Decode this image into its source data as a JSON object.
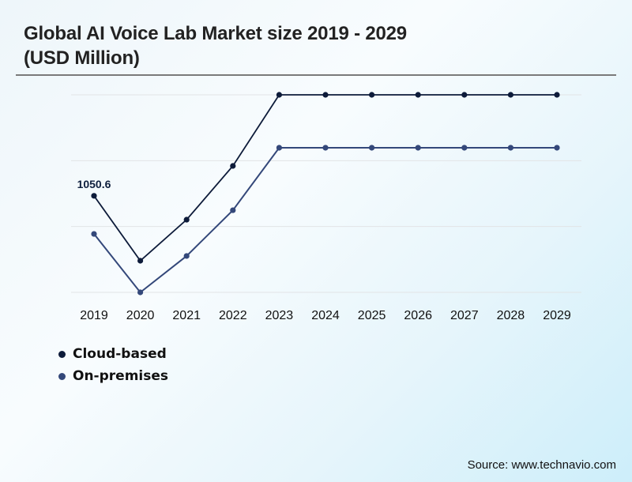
{
  "chart_data": {
    "type": "line",
    "title": "Global AI Voice Lab Market size 2019 - 2029 (USD Million)",
    "title_lines": [
      "Global AI Voice Lab Market size 2019 - 2029",
      "(USD Million)"
    ],
    "xlabel": "",
    "ylabel": "",
    "categories": [
      "2019",
      "2020",
      "2021",
      "2022",
      "2023",
      "2024",
      "2025",
      "2026",
      "2027",
      "2028",
      "2029"
    ],
    "ylim": [
      0,
      2150
    ],
    "y_gridlines": [
      0,
      716.7,
      1433.3,
      2150
    ],
    "grid": true,
    "y_tick_labels_visible": false,
    "legend_position": "bottom-left",
    "series": [
      {
        "name": "Cloud-based",
        "color": "#0d1b3a",
        "values": [
          1050.6,
          344,
          791,
          1376,
          2150,
          2150,
          2150,
          2150,
          2150,
          2150,
          2150
        ]
      },
      {
        "name": "On-premises",
        "color": "#34487a",
        "values": [
          636,
          0,
          396,
          894,
          1574,
          1574,
          1574,
          1574,
          1574,
          1574,
          1574
        ]
      }
    ],
    "annotations": [
      {
        "series": "Cloud-based",
        "category": "2019",
        "text": "1050.6"
      }
    ],
    "source": "Source: www.technavio.com"
  }
}
